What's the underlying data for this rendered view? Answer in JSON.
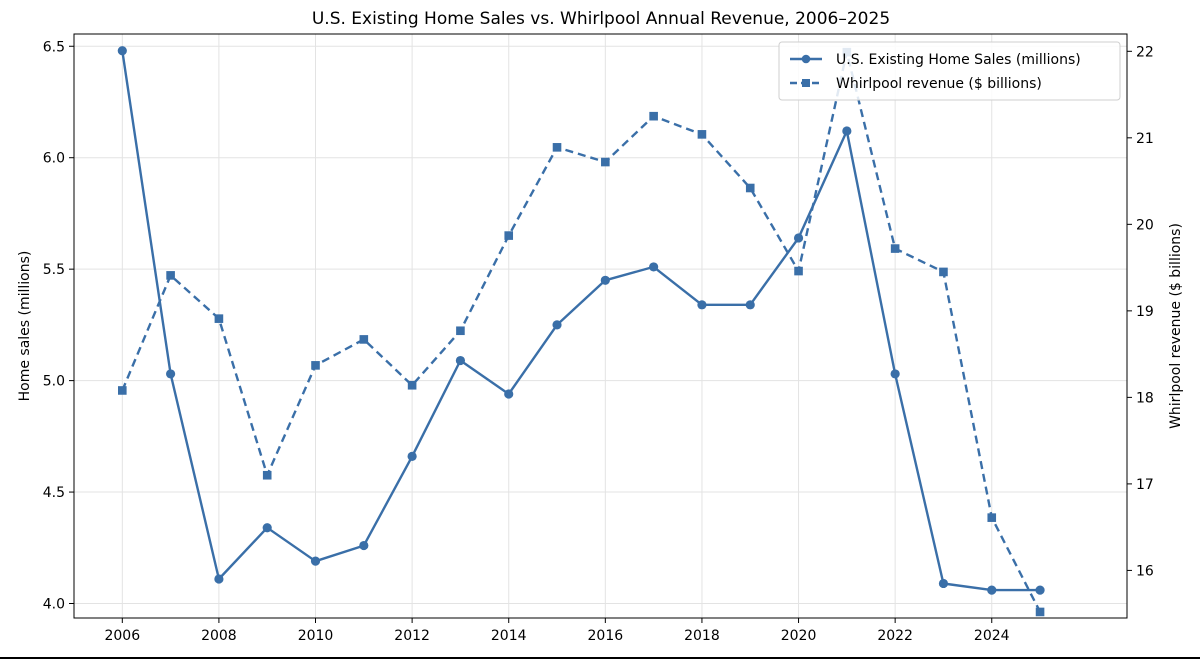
{
  "chart_data": {
    "type": "line",
    "title": "U.S. Existing Home Sales vs. Whirlpool Annual Revenue, 2006–2025",
    "x": [
      2006,
      2007,
      2008,
      2009,
      2010,
      2011,
      2012,
      2013,
      2014,
      2015,
      2016,
      2017,
      2018,
      2019,
      2020,
      2021,
      2022,
      2023,
      2024,
      2025
    ],
    "xlim": [
      2005,
      2026.8
    ],
    "xticks": [
      2006,
      2008,
      2010,
      2012,
      2014,
      2016,
      2018,
      2020,
      2022,
      2024
    ],
    "y_left": {
      "label": "Home sales (millions)",
      "lim": [
        3.935,
        6.555
      ],
      "ticks": [
        4.0,
        4.5,
        5.0,
        5.5,
        6.0,
        6.5
      ],
      "tick_labels": [
        "4.0",
        "4.5",
        "5.0",
        "5.5",
        "6.0",
        "6.5"
      ]
    },
    "y_right": {
      "label": "Whirlpool revenue ($ billions)",
      "lim": [
        15.45,
        22.2
      ],
      "ticks": [
        16,
        17,
        18,
        19,
        20,
        21,
        22
      ],
      "tick_labels": [
        "16",
        "17",
        "18",
        "19",
        "20",
        "21",
        "22"
      ]
    },
    "series": [
      {
        "name": "U.S. Existing Home Sales (millions)",
        "axis": "left",
        "style": "solid",
        "marker": "circle",
        "color": "#3a6fa8",
        "values": [
          6.48,
          5.03,
          4.11,
          4.34,
          4.19,
          4.26,
          4.66,
          5.09,
          4.94,
          5.25,
          5.45,
          5.51,
          5.34,
          5.34,
          5.64,
          6.12,
          5.03,
          4.09,
          4.06,
          4.06
        ]
      },
      {
        "name": "Whirlpool revenue ($ billions)",
        "axis": "right",
        "style": "dashed",
        "marker": "square",
        "color": "#3a6fa8",
        "values": [
          18.08,
          19.41,
          18.91,
          17.1,
          18.37,
          18.67,
          18.14,
          18.77,
          19.87,
          20.89,
          20.72,
          21.25,
          21.04,
          20.42,
          19.46,
          21.99,
          19.72,
          19.45,
          16.61,
          15.52
        ]
      }
    ],
    "grid": true,
    "legend": "top-right"
  }
}
